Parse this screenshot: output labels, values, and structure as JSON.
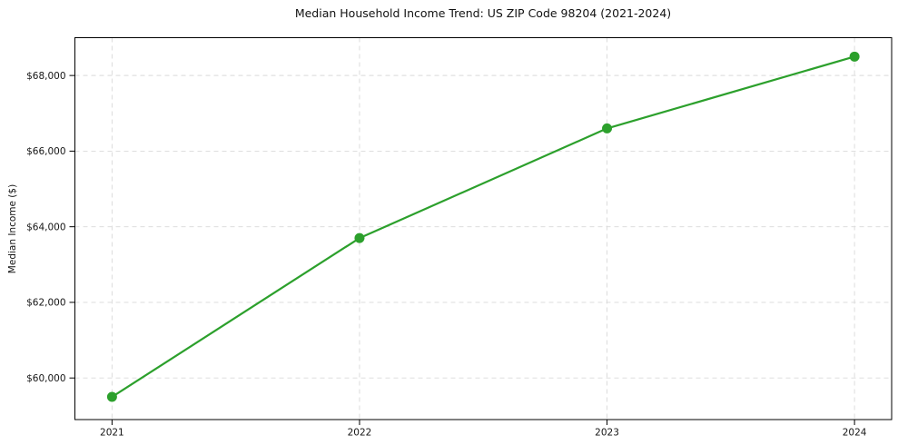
{
  "chart_data": {
    "type": "line",
    "title": "Median Household Income Trend: US ZIP Code 98204 (2021-2024)",
    "xlabel": "",
    "ylabel": "Median Income ($)",
    "categories": [
      2021,
      2022,
      2023,
      2024
    ],
    "values": [
      59500,
      63700,
      66600,
      68500
    ],
    "x_tick_labels": [
      "2021",
      "2022",
      "2023",
      "2024"
    ],
    "y_ticks": [
      {
        "value": 60000,
        "label": "$60,000"
      },
      {
        "value": 62000,
        "label": "$62,000"
      },
      {
        "value": 64000,
        "label": "$64,000"
      },
      {
        "value": 66000,
        "label": "$66,000"
      },
      {
        "value": 68000,
        "label": "$68,000"
      }
    ],
    "ylim": [
      58900,
      69000
    ],
    "xlim": [
      2020.85,
      2024.15
    ],
    "grid": true,
    "grid_style": "dashed",
    "legend": "none",
    "line_color": "#2ca02c",
    "marker_color": "#2ca02c",
    "grid_color": "#d9d9d9",
    "axis_color": "#000000",
    "text_color": "#161616"
  }
}
